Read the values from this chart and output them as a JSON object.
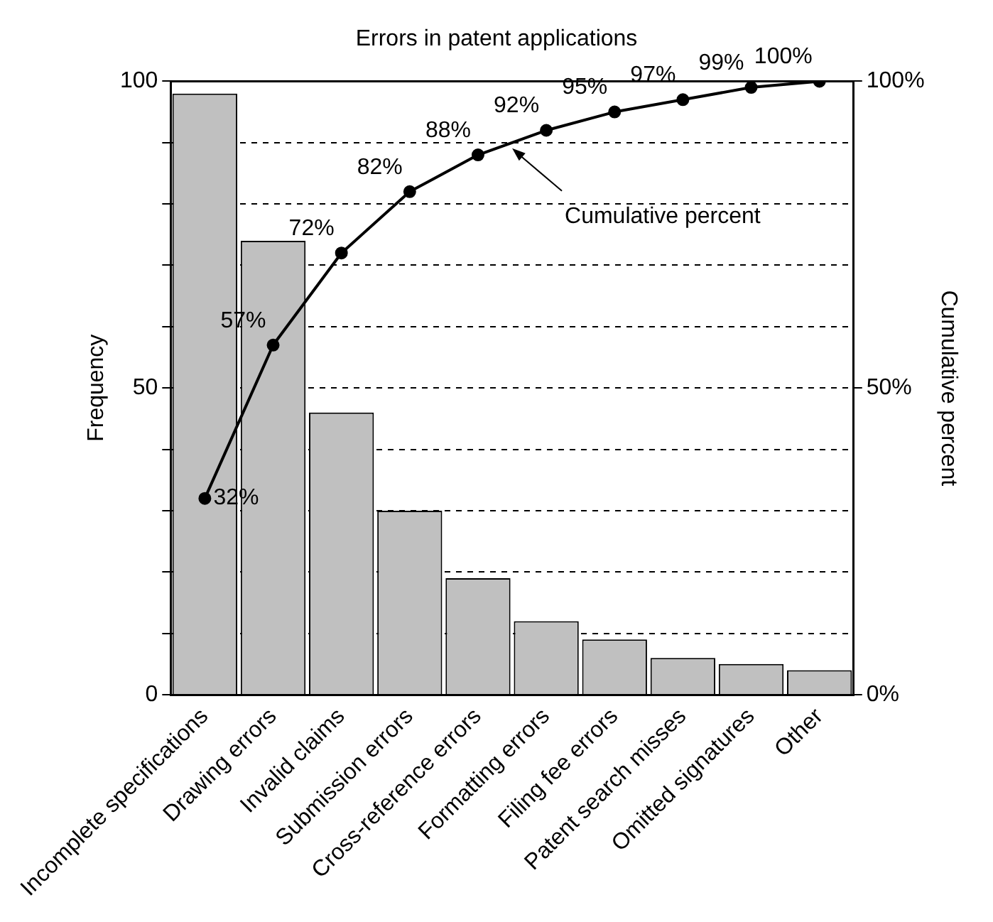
{
  "chart_data": {
    "type": "bar",
    "title": "Errors in patent applications",
    "ylabel": "Frequency",
    "y2label": "Cumulative percent",
    "categories": [
      "Incomplete specifications",
      "Drawing errors",
      "Invalid claims",
      "Submission errors",
      "Cross-reference errors",
      "Formatting errors",
      "Filing fee errors",
      "Patent search misses",
      "Omitted signatures",
      "Other"
    ],
    "series": [
      {
        "color": "#c0c0c0",
        "values": [
          98,
          74,
          46,
          30,
          19,
          12,
          9,
          6,
          5,
          4
        ]
      },
      {
        "type": "line",
        "name": "Cumulative percent",
        "axis": "y2",
        "color": "#000000",
        "values": [
          32,
          57,
          72,
          82,
          88,
          92,
          95,
          97,
          99,
          100
        ],
        "value_labels": [
          "32%",
          "57%",
          "72%",
          "82%",
          "88%",
          "92%",
          "95%",
          "97%",
          "99%",
          "100%"
        ]
      }
    ],
    "ylim": [
      0,
      100
    ],
    "yticks": [
      0,
      {
        "value": 10,
        "label": null
      },
      {
        "value": 20,
        "label": null
      },
      {
        "value": 30,
        "label": null
      },
      {
        "value": 40,
        "label": null
      },
      50,
      {
        "value": 60,
        "label": null
      },
      {
        "value": 70,
        "label": null
      },
      {
        "value": 80,
        "label": null
      },
      {
        "value": 90,
        "label": null
      },
      100
    ],
    "y2lim": [
      0,
      100
    ],
    "y2ticks": [
      {
        "value": 0,
        "label": "0%"
      },
      {
        "value": 50,
        "label": "50%"
      },
      {
        "value": 100,
        "label": "100%"
      }
    ],
    "grid": "y",
    "legend": false,
    "marker": "circle"
  }
}
